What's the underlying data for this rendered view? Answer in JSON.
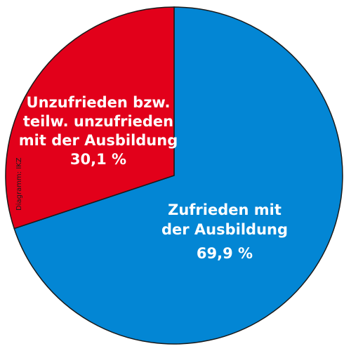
{
  "chart_data": {
    "type": "pie",
    "categories": [
      "Zufrieden mit der Ausbildung",
      "Unzufrieden bzw. teilw. unzufrieden mit der Ausbildung"
    ],
    "values": [
      69.9,
      30.1
    ],
    "value_labels": [
      "69,9 %",
      "30,1 %"
    ],
    "label_lines": [
      [
        "Zufrieden mit",
        "der Ausbildung"
      ],
      [
        "Unzufrieden bzw.",
        "teilw. unzufrieden",
        "mit der Ausbildung"
      ]
    ],
    "colors": [
      "#0386d4",
      "#e2001a"
    ],
    "outline_color": "#1a1a1a",
    "start_angle_deg": 0,
    "direction": "clockwise"
  },
  "credit": "Diagramm: IKZ"
}
